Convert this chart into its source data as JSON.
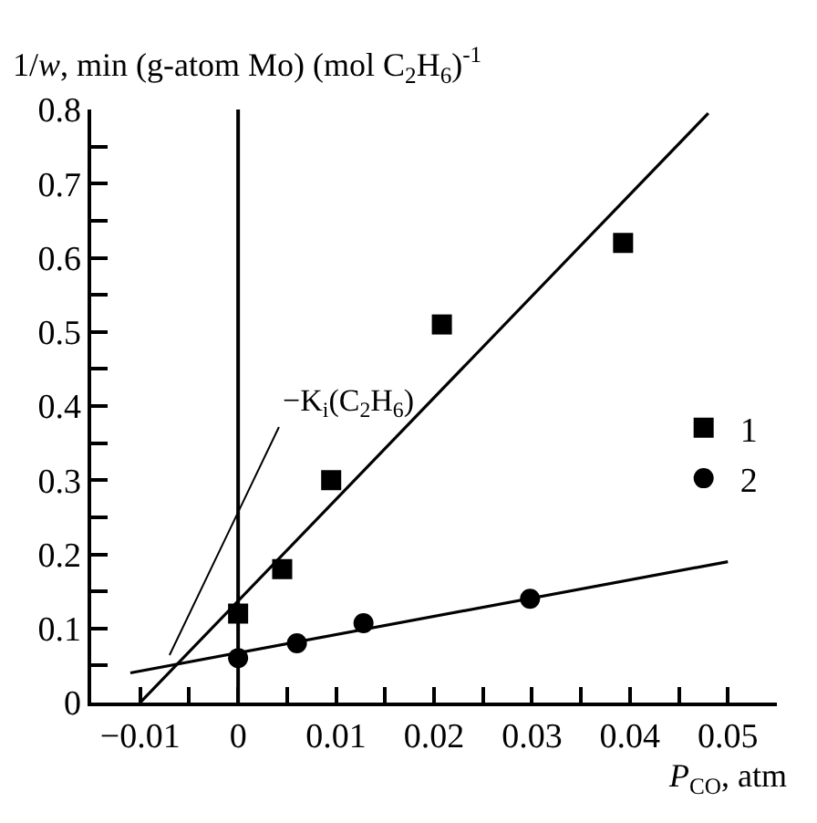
{
  "chart_data": {
    "type": "scatter",
    "ylabel": "1/w, min (g-atom Mo) (mol C$_{2}$H$_{6}$)$^{-1}$",
    "xlabel": "P$_{CO}$, atm",
    "series": [
      {
        "name": "1",
        "marker": "square",
        "color": "#000000",
        "x": [
          0,
          0.0045,
          0.0095,
          0.0208,
          0.0393
        ],
        "values": [
          0.12,
          0.18,
          0.3,
          0.51,
          0.62
        ]
      },
      {
        "name": "2",
        "marker": "circle",
        "color": "#000000",
        "x": [
          0,
          0.006,
          0.0128,
          0.0298
        ],
        "values": [
          0.06,
          0.08,
          0.107,
          0.14
        ]
      },
      {
        "type": "line",
        "marker": "none",
        "color": "#000000",
        "x": [
          -0.01,
          0.048
        ],
        "values": [
          0,
          0.795
        ]
      },
      {
        "type": "line",
        "marker": "none",
        "color": "#000000",
        "x": [
          -0.011,
          0.05
        ],
        "values": [
          0.04,
          0.19
        ]
      }
    ],
    "annotations": [
      {
        "text": "−K$_{i}$(C$_{2}$H$_{6}$)",
        "x": -0.007,
        "y": 0.064
      }
    ],
    "ref_lines": [
      {
        "axis": "x",
        "value": 0,
        "color": "#000000"
      }
    ],
    "xlim": [
      -0.015,
      0.055
    ],
    "ylim": [
      0,
      0.8
    ],
    "xticks": [
      {
        "value": -0.01,
        "label": "−0.01"
      },
      {
        "value": -0.005,
        "label": null
      },
      0,
      {
        "value": 0.005,
        "label": null
      },
      0.01,
      {
        "value": 0.015,
        "label": null
      },
      0.02,
      {
        "value": 0.025,
        "label": null
      },
      0.03,
      {
        "value": 0.035,
        "label": null
      },
      0.04,
      {
        "value": 0.045,
        "label": null
      },
      0.05
    ],
    "yticks": [
      0,
      {
        "value": 0.05,
        "label": null
      },
      0.1,
      {
        "value": 0.15,
        "label": null
      },
      0.2,
      {
        "value": 0.25,
        "label": null
      },
      0.3,
      {
        "value": 0.35,
        "label": null
      },
      0.4,
      {
        "value": 0.45,
        "label": null
      },
      0.5,
      {
        "value": 0.55,
        "label": null
      },
      0.6,
      {
        "value": 0.65,
        "label": null
      },
      0.7,
      {
        "value": 0.75,
        "label": null
      },
      0.8
    ],
    "legend": "right"
  }
}
